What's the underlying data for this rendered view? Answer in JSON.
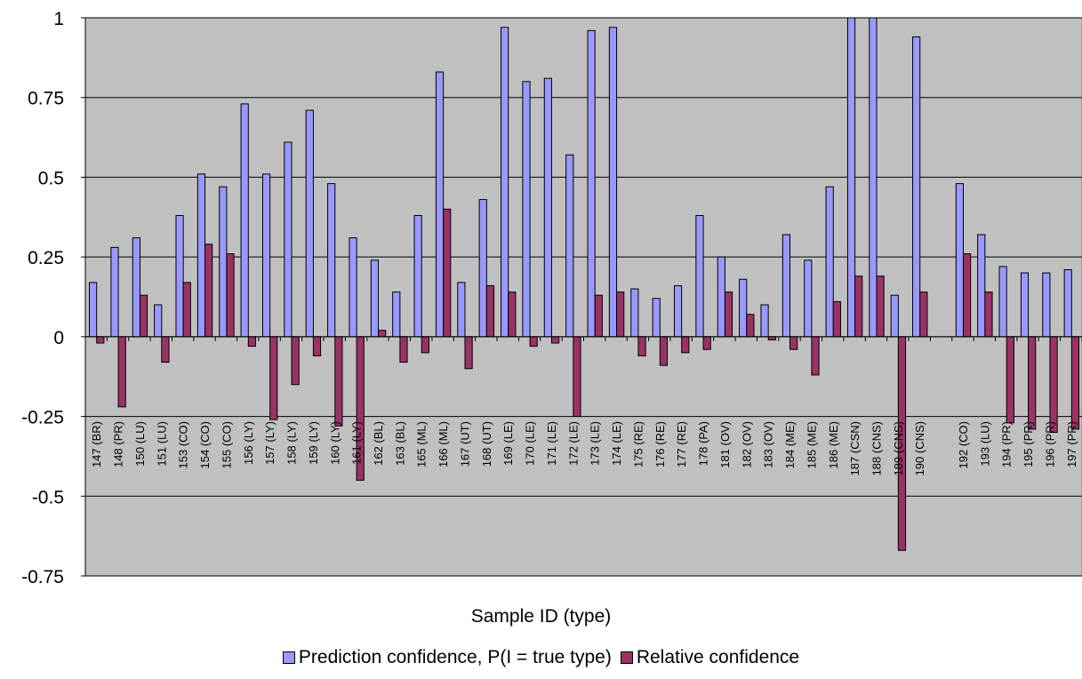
{
  "chart_data": {
    "type": "bar",
    "xlabel": "Sample ID (type)",
    "ylabel": "",
    "ylim": [
      -0.75,
      1
    ],
    "yticks": [
      1,
      0.75,
      0.5,
      0.25,
      0,
      -0.25,
      -0.5,
      -0.75
    ],
    "ytick_labels": [
      "1",
      "0.75",
      "0.5",
      "0.25",
      "0",
      "-0.25",
      "-0.5",
      "-0.75"
    ],
    "grid": "horizontal",
    "legend_position": "bottom",
    "plot_background": "#c0c0c0",
    "categories": [
      "147 (BR)",
      "148 (PR)",
      "150 (LU)",
      "151 (LU)",
      "153 (CO)",
      "154 (CO)",
      "155 (CO)",
      "156 (LY)",
      "157 (LY)",
      "158 (LY)",
      "159 (LY)",
      "160 (LY)",
      "161 (LY)",
      "162 (BL)",
      "163 (BL)",
      "165 (ML)",
      "166 (ML)",
      "167 (UT)",
      "168 (UT)",
      "169 (LE)",
      "170 (LE)",
      "171 (LE)",
      "172 (LE)",
      "173 (LE)",
      "174 (LE)",
      "175 (RE)",
      "176 (RE)",
      "177 (RE)",
      "178 (PA)",
      "181 (OV)",
      "182 (OV)",
      "183 (OV)",
      "184 (ME)",
      "185 (ME)",
      "186 (ME)",
      "187 (CSN)",
      "188 (CNS)",
      "189 (CNS)",
      "190 (CNS)",
      "",
      "192 (CO)",
      "193 (LU)",
      "194 (PR)",
      "195 (PR)",
      "196 (PR)",
      "197 (PR)"
    ],
    "series": [
      {
        "name": "Prediction confidence, P(I = true type)",
        "color": "#9999ff",
        "values": [
          0.17,
          0.28,
          0.31,
          0.1,
          0.38,
          0.51,
          0.47,
          0.73,
          0.51,
          0.61,
          0.71,
          0.48,
          0.31,
          0.24,
          0.14,
          0.38,
          0.83,
          0.17,
          0.43,
          0.97,
          0.8,
          0.81,
          0.57,
          0.96,
          0.97,
          0.15,
          0.12,
          0.16,
          0.38,
          0.25,
          0.18,
          0.1,
          0.32,
          0.24,
          0.47,
          1.0,
          1.0,
          0.13,
          0.94,
          null,
          0.48,
          0.32,
          0.22,
          0.2,
          0.2,
          0.21
        ]
      },
      {
        "name": "Relative confidence",
        "color": "#993366",
        "values": [
          -0.02,
          -0.22,
          0.13,
          -0.08,
          0.17,
          0.29,
          0.26,
          -0.03,
          -0.26,
          -0.15,
          -0.06,
          -0.28,
          -0.45,
          0.02,
          -0.08,
          -0.05,
          0.4,
          -0.1,
          0.16,
          0.14,
          -0.03,
          -0.02,
          -0.25,
          0.13,
          0.14,
          -0.06,
          -0.09,
          -0.05,
          -0.04,
          0.14,
          0.07,
          -0.01,
          -0.04,
          -0.12,
          0.11,
          0.19,
          0.19,
          -0.67,
          0.14,
          null,
          0.26,
          0.14,
          -0.27,
          -0.29,
          -0.3,
          -0.29
        ]
      }
    ]
  }
}
